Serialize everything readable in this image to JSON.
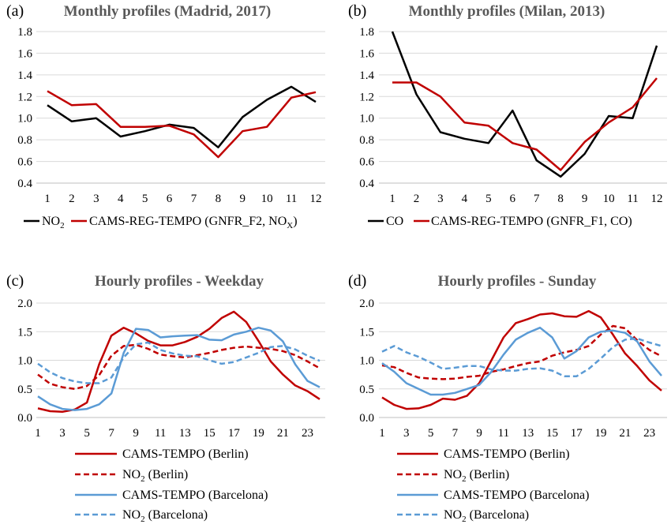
{
  "colors": {
    "black": "#000000",
    "red": "#c00000",
    "blue": "#5b9bd5",
    "axis": "#bfbfbf",
    "grid": "#d9d9d9",
    "title": "#595959"
  },
  "chart_data": [
    {
      "type": "line",
      "panel_label": "(a)",
      "title": "Monthly profiles (Madrid, 2017)",
      "categories": [
        "1",
        "2",
        "3",
        "4",
        "5",
        "6",
        "7",
        "8",
        "9",
        "10",
        "11",
        "12"
      ],
      "ylim": [
        0.4,
        1.8
      ],
      "yticks": [
        "0.4",
        "0.6",
        "0.8",
        "1.0",
        "1.2",
        "1.4",
        "1.6",
        "1.8"
      ],
      "series": [
        {
          "name": "NO",
          "sub": "2",
          "suffix": "",
          "color": "black",
          "dash": false,
          "values": [
            1.12,
            0.97,
            1.0,
            0.83,
            0.88,
            0.94,
            0.91,
            0.73,
            1.01,
            1.17,
            1.29,
            1.15
          ]
        },
        {
          "name": "CAMS-REG-TEMPO (GNFR_F2, NO",
          "sub": "X",
          "suffix": ")",
          "color": "red",
          "dash": false,
          "values": [
            1.25,
            1.12,
            1.13,
            0.92,
            0.92,
            0.93,
            0.85,
            0.64,
            0.88,
            0.92,
            1.19,
            1.24
          ]
        }
      ],
      "legend": "bottom-inline"
    },
    {
      "type": "line",
      "panel_label": "(b)",
      "title": "Monthly profiles (Milan, 2013)",
      "categories": [
        "1",
        "2",
        "3",
        "4",
        "5",
        "6",
        "7",
        "8",
        "9",
        "10",
        "11",
        "12"
      ],
      "ylim": [
        0.4,
        1.8
      ],
      "yticks": [
        "0.4",
        "0.6",
        "0.8",
        "1.0",
        "1.2",
        "1.4",
        "1.6",
        "1.8"
      ],
      "series": [
        {
          "name": "CO",
          "sub": "",
          "suffix": "",
          "color": "black",
          "dash": false,
          "values": [
            1.8,
            1.22,
            0.87,
            0.81,
            0.77,
            1.07,
            0.61,
            0.46,
            0.67,
            1.02,
            1.0,
            1.67
          ]
        },
        {
          "name": "CAMS-REG-TEMPO (GNFR_F1, CO)",
          "sub": "",
          "suffix": "",
          "color": "red",
          "dash": false,
          "values": [
            1.33,
            1.33,
            1.2,
            0.96,
            0.93,
            0.77,
            0.71,
            0.52,
            0.78,
            0.96,
            1.1,
            1.37
          ]
        }
      ],
      "legend": "bottom-inline"
    },
    {
      "type": "line",
      "panel_label": "(c)",
      "title": "Hourly profiles - Weekday",
      "categories": [
        "1",
        "2",
        "3",
        "4",
        "5",
        "6",
        "7",
        "8",
        "9",
        "10",
        "11",
        "12",
        "13",
        "14",
        "15",
        "16",
        "17",
        "18",
        "19",
        "20",
        "21",
        "22",
        "23",
        "24"
      ],
      "xtick_labels": [
        "1",
        "3",
        "5",
        "7",
        "9",
        "11",
        "13",
        "15",
        "17",
        "19",
        "21",
        "23"
      ],
      "ylim": [
        0.0,
        2.0
      ],
      "yticks": [
        "0.0",
        "0.5",
        "1.0",
        "1.5",
        "2.0"
      ],
      "series": [
        {
          "name": "CAMS-TEMPO (Berlin)",
          "sub": "",
          "suffix": "",
          "color": "red",
          "dash": false,
          "values": [
            0.16,
            0.11,
            0.1,
            0.14,
            0.26,
            0.93,
            1.43,
            1.57,
            1.47,
            1.34,
            1.26,
            1.26,
            1.32,
            1.41,
            1.55,
            1.74,
            1.85,
            1.67,
            1.34,
            0.98,
            0.75,
            0.56,
            0.46,
            0.32
          ]
        },
        {
          "name": "NO",
          "sub": "2",
          "suffix": " (Berlin)",
          "color": "red",
          "dash": true,
          "values": [
            0.75,
            0.59,
            0.53,
            0.5,
            0.55,
            0.74,
            1.08,
            1.25,
            1.27,
            1.2,
            1.1,
            1.07,
            1.05,
            1.09,
            1.13,
            1.18,
            1.22,
            1.24,
            1.22,
            1.2,
            1.16,
            1.09,
            0.98,
            0.86
          ]
        },
        {
          "name": "CAMS-TEMPO (Barcelona)",
          "sub": "",
          "suffix": "",
          "color": "blue",
          "dash": false,
          "values": [
            0.37,
            0.23,
            0.15,
            0.13,
            0.15,
            0.23,
            0.42,
            1.13,
            1.55,
            1.53,
            1.4,
            1.42,
            1.43,
            1.44,
            1.36,
            1.35,
            1.45,
            1.5,
            1.57,
            1.52,
            1.33,
            0.93,
            0.64,
            0.53
          ]
        },
        {
          "name": "NO",
          "sub": "2",
          "suffix": " (Barcelona)",
          "color": "blue",
          "dash": true,
          "values": [
            0.94,
            0.79,
            0.69,
            0.63,
            0.6,
            0.6,
            0.7,
            1.05,
            1.28,
            1.31,
            1.18,
            1.12,
            1.08,
            1.07,
            1.0,
            0.94,
            0.97,
            1.05,
            1.13,
            1.23,
            1.25,
            1.19,
            1.08,
            0.99
          ]
        }
      ],
      "legend": "bottom-stacked"
    },
    {
      "type": "line",
      "panel_label": "(d)",
      "title": "Hourly profiles - Sunday",
      "categories": [
        "1",
        "2",
        "3",
        "4",
        "5",
        "6",
        "7",
        "8",
        "9",
        "10",
        "11",
        "12",
        "13",
        "14",
        "15",
        "16",
        "17",
        "18",
        "19",
        "20",
        "21",
        "22",
        "23",
        "24"
      ],
      "xtick_labels": [
        "1",
        "3",
        "5",
        "7",
        "9",
        "11",
        "13",
        "15",
        "17",
        "19",
        "21",
        "23"
      ],
      "ylim": [
        0.0,
        2.0
      ],
      "yticks": [
        "0.0",
        "0.5",
        "1.0",
        "1.5",
        "2.0"
      ],
      "series": [
        {
          "name": "CAMS-TEMPO (Berlin)",
          "sub": "",
          "suffix": "",
          "color": "red",
          "dash": false,
          "values": [
            0.35,
            0.22,
            0.15,
            0.16,
            0.22,
            0.33,
            0.31,
            0.38,
            0.6,
            1.0,
            1.4,
            1.65,
            1.72,
            1.8,
            1.82,
            1.77,
            1.76,
            1.86,
            1.75,
            1.45,
            1.12,
            0.9,
            0.65,
            0.47
          ]
        },
        {
          "name": "NO",
          "sub": "2",
          "suffix": " (Berlin)",
          "color": "red",
          "dash": true,
          "values": [
            0.91,
            0.88,
            0.78,
            0.7,
            0.68,
            0.67,
            0.68,
            0.71,
            0.73,
            0.8,
            0.84,
            0.9,
            0.95,
            0.98,
            1.08,
            1.14,
            1.18,
            1.25,
            1.45,
            1.6,
            1.56,
            1.35,
            1.18,
            1.07
          ]
        },
        {
          "name": "CAMS-TEMPO (Barcelona)",
          "sub": "",
          "suffix": "",
          "color": "blue",
          "dash": false,
          "values": [
            0.95,
            0.8,
            0.6,
            0.5,
            0.4,
            0.4,
            0.43,
            0.5,
            0.57,
            0.8,
            1.1,
            1.36,
            1.48,
            1.57,
            1.4,
            1.03,
            1.16,
            1.4,
            1.5,
            1.52,
            1.48,
            1.33,
            0.98,
            0.73
          ]
        },
        {
          "name": "NO",
          "sub": "2",
          "suffix": " (Barcelona)",
          "color": "blue",
          "dash": true,
          "values": [
            1.15,
            1.25,
            1.14,
            1.06,
            0.96,
            0.85,
            0.87,
            0.9,
            0.9,
            0.84,
            0.82,
            0.82,
            0.85,
            0.86,
            0.82,
            0.72,
            0.72,
            0.85,
            1.03,
            1.23,
            1.36,
            1.38,
            1.31,
            1.25
          ]
        }
      ],
      "legend": "bottom-stacked"
    }
  ]
}
